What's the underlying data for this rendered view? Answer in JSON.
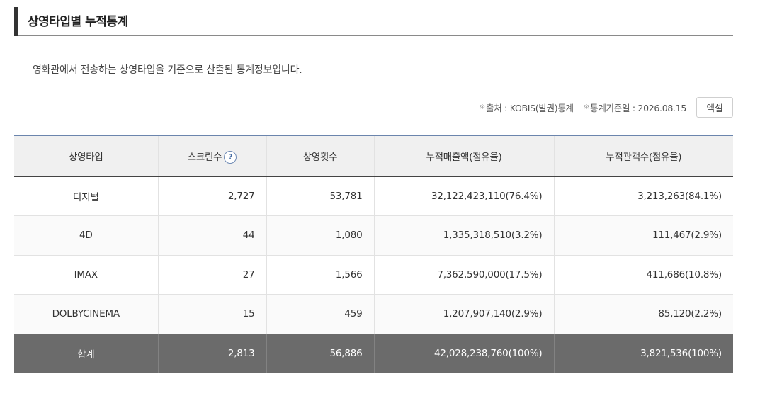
{
  "header": {
    "title": "상영타입별 누적통계"
  },
  "description": "영화관에서 전송하는 상영타입을 기준으로 산출된 통계정보입니다.",
  "meta": {
    "source_mark": "※",
    "source": "출처 : KOBIS(발권)통계",
    "date_mark": "※",
    "date": "통계기준일 : 2026.08.15",
    "excel_label": "엑셀"
  },
  "table": {
    "headers": {
      "type": "상영타입",
      "screens": "스크린수",
      "screens_help": "?",
      "shows": "상영횟수",
      "sales": "누적매출액(점유율)",
      "audience": "누적관객수(점유율)"
    },
    "rows": [
      {
        "type": "디지털",
        "screens": "2,727",
        "shows": "53,781",
        "sales": "32,122,423,110(76.4%)",
        "audience": "3,213,263(84.1%)"
      },
      {
        "type": "4D",
        "screens": "44",
        "shows": "1,080",
        "sales": "1,335,318,510(3.2%)",
        "audience": "111,467(2.9%)"
      },
      {
        "type": "IMAX",
        "screens": "27",
        "shows": "1,566",
        "sales": "7,362,590,000(17.5%)",
        "audience": "411,686(10.8%)"
      },
      {
        "type": "DOLBYCINEMA",
        "screens": "15",
        "shows": "459",
        "sales": "1,207,907,140(2.9%)",
        "audience": "85,120(2.2%)"
      }
    ],
    "total": {
      "type": "합계",
      "screens": "2,813",
      "shows": "56,886",
      "sales": "42,028,238,760(100%)",
      "audience": "3,821,536(100%)"
    }
  }
}
